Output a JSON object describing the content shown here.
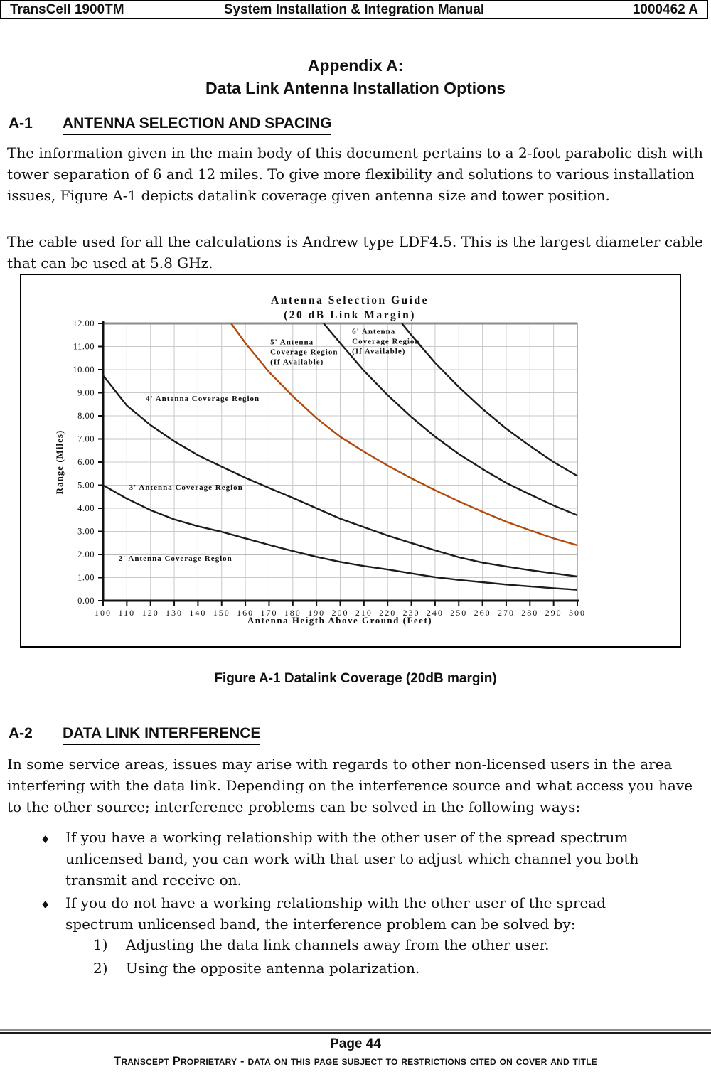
{
  "header": {
    "left": "TransCell 1900TM",
    "center": "System Installation & Integration Manual",
    "right": "1000462 A"
  },
  "title": {
    "line1": "Appendix A:",
    "line2": "Data Link Antenna Installation Options"
  },
  "section_a1": {
    "number": "A-1",
    "heading": "ANTENNA SELECTION AND SPACING",
    "para1": "The information given in the main body of this document pertains to a 2-foot parabolic dish with tower separation of 6 and 12 miles. To give more flexibility and solutions to various installation issues, Figure A-1 depicts datalink coverage given antenna size and tower position.",
    "para2": "The cable used for all the calculations is Andrew type LDF4.5. This is the largest diameter cable that can be used at 5.8 GHz."
  },
  "figure": {
    "caption": "Figure A-1 Datalink Coverage (20dB margin)"
  },
  "chart_data": {
    "type": "line",
    "title": "Antenna Selection Guide",
    "subtitle": "(20 dB Link Margin)",
    "xlabel": "Antenna Heigth Above Ground (Feet)",
    "ylabel": "Range (Miles)",
    "xlim": [
      100,
      300
    ],
    "ylim": [
      0,
      12
    ],
    "x_tick_step": 10,
    "y_tick_step": 1,
    "grid": true,
    "legend": "none",
    "colors": {
      "black_curve": "#1c1c1c",
      "orange_curve": "#b24a0c",
      "grid": "#c9c9c9",
      "grid_dark": "#b0b0b0",
      "top_border": "#8c8c8c"
    },
    "region_labels": [
      {
        "lines": [
          "2' Antenna Coverage Region"
        ],
        "x": 106.5,
        "y": 1.72
      },
      {
        "lines": [
          "3' Antenna Coverage Region"
        ],
        "x": 111,
        "y": 4.8
      },
      {
        "lines": [
          "4' Antenna Coverage Region"
        ],
        "x": 118,
        "y": 8.65
      },
      {
        "lines": [
          "5' Antenna",
          "Coverage Region",
          "(If Available)"
        ],
        "x": 170.5,
        "y": 11.1
      },
      {
        "lines": [
          "6' Antenna",
          "Coverage Region",
          "(If Available)"
        ],
        "x": 205,
        "y": 11.55
      }
    ],
    "series": [
      {
        "name": "2' antenna coverage limit",
        "color": "#1c1c1c",
        "x": [
          100,
          110,
          120,
          130,
          140,
          150,
          160,
          170,
          180,
          190,
          200,
          210,
          220,
          230,
          240,
          250,
          260,
          270,
          280,
          290,
          300
        ],
        "y": [
          5.0,
          4.42,
          3.92,
          3.52,
          3.22,
          2.98,
          2.7,
          2.42,
          2.15,
          1.9,
          1.68,
          1.5,
          1.35,
          1.18,
          1.02,
          0.9,
          0.8,
          0.7,
          0.62,
          0.54,
          0.47
        ]
      },
      {
        "name": "3' antenna coverage limit",
        "color": "#1c1c1c",
        "x": [
          100,
          110,
          120,
          130,
          140,
          150,
          160,
          170,
          180,
          190,
          200,
          210,
          220,
          230,
          240,
          250,
          260,
          270,
          280,
          290,
          300
        ],
        "y": [
          9.75,
          8.45,
          7.6,
          6.9,
          6.3,
          5.8,
          5.32,
          4.88,
          4.45,
          4.0,
          3.55,
          3.18,
          2.82,
          2.5,
          2.18,
          1.88,
          1.65,
          1.48,
          1.32,
          1.18,
          1.05
        ]
      },
      {
        "name": "4' antenna coverage limit (orange)",
        "color": "#b24a0c",
        "x": [
          154,
          160,
          170,
          180,
          190,
          200,
          210,
          220,
          230,
          240,
          250,
          260,
          270,
          280,
          290,
          300
        ],
        "y": [
          12,
          11.15,
          9.9,
          8.85,
          7.9,
          7.1,
          6.45,
          5.85,
          5.3,
          4.78,
          4.3,
          3.85,
          3.42,
          3.05,
          2.7,
          2.4
        ]
      },
      {
        "name": "5' antenna coverage limit",
        "color": "#1c1c1c",
        "x": [
          193,
          200,
          210,
          220,
          230,
          240,
          250,
          260,
          270,
          280,
          290,
          300
        ],
        "y": [
          12,
          11.15,
          9.95,
          8.9,
          7.95,
          7.1,
          6.35,
          5.7,
          5.1,
          4.6,
          4.12,
          3.7
        ]
      },
      {
        "name": "6' antenna coverage limit",
        "color": "#1c1c1c",
        "x": [
          226,
          230,
          240,
          250,
          260,
          270,
          280,
          290,
          300
        ],
        "y": [
          12,
          11.5,
          10.3,
          9.25,
          8.3,
          7.45,
          6.7,
          6.0,
          5.4
        ]
      }
    ]
  },
  "section_a2": {
    "number": "A-2",
    "heading": "DATA LINK INTERFERENCE",
    "para1": "In some service areas, issues may arise with regards to other non-licensed users in the area interfering with the data link. Depending on the interference source and what access you have to the other source; interference problems can be solved in the following ways:",
    "bullet_glyph": "♦",
    "bullets": [
      {
        "text": "If you have a working relationship with the other user of the spread spectrum unlicensed band, you can work with that user to adjust which channel you both transmit and receive on."
      },
      {
        "text": "If you do not have a working relationship with the other user of the spread spectrum unlicensed band, the interference problem can be solved by:"
      }
    ],
    "numbered": [
      {
        "label": "1)",
        "text": "Adjusting the data link channels away from the other user."
      },
      {
        "label": "2)",
        "text": "Using the opposite antenna polarization."
      }
    ]
  },
  "footer": {
    "page_label": "Page 44",
    "proprietary": "Transcept Proprietary - data on this page subject to restrictions cited on cover and title"
  }
}
